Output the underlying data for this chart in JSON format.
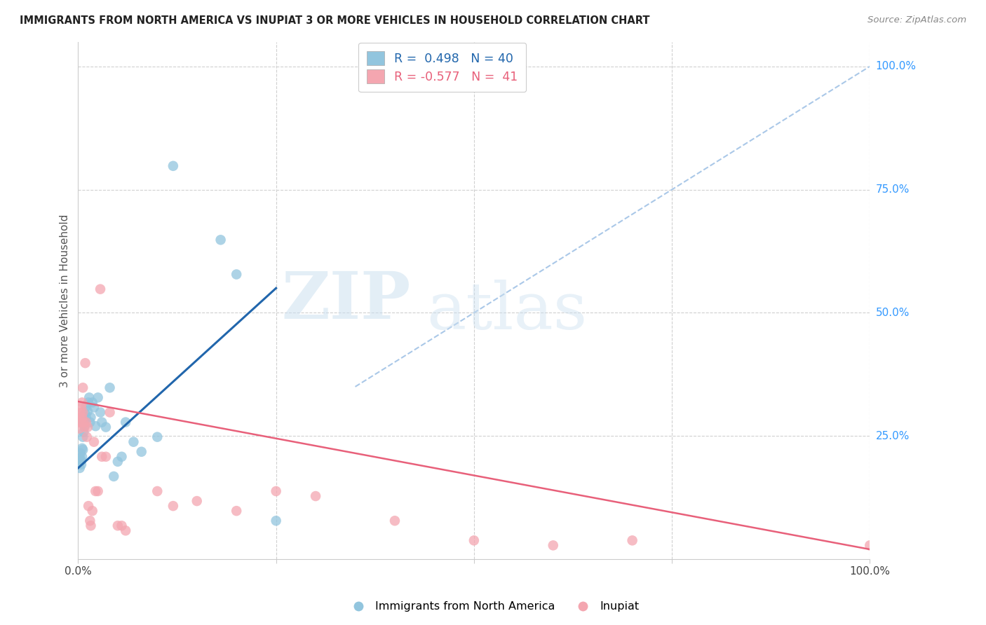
{
  "title": "IMMIGRANTS FROM NORTH AMERICA VS INUPIAT 3 OR MORE VEHICLES IN HOUSEHOLD CORRELATION CHART",
  "source": "Source: ZipAtlas.com",
  "ylabel": "3 or more Vehicles in Household",
  "ylabel_right_labels": [
    "100.0%",
    "75.0%",
    "50.0%",
    "25.0%"
  ],
  "ylabel_right_positions": [
    1.0,
    0.75,
    0.5,
    0.25
  ],
  "legend_blue_label": "R =  0.498   N = 40",
  "legend_pink_label": "R = -0.577   N =  41",
  "legend_bottom_blue": "Immigrants from North America",
  "legend_bottom_pink": "Inupiat",
  "blue_color": "#92c5de",
  "pink_color": "#f4a6b0",
  "line_blue_color": "#2166ac",
  "line_pink_color": "#e8607a",
  "dashed_line_color": "#aac8e8",
  "watermark_zip": "ZIP",
  "watermark_atlas": "atlas",
  "blue_dots": [
    [
      0.001,
      0.195
    ],
    [
      0.002,
      0.205
    ],
    [
      0.002,
      0.185
    ],
    [
      0.003,
      0.215
    ],
    [
      0.004,
      0.2
    ],
    [
      0.004,
      0.192
    ],
    [
      0.005,
      0.225
    ],
    [
      0.005,
      0.208
    ],
    [
      0.006,
      0.248
    ],
    [
      0.006,
      0.222
    ],
    [
      0.007,
      0.258
    ],
    [
      0.007,
      0.278
    ],
    [
      0.008,
      0.27
    ],
    [
      0.009,
      0.295
    ],
    [
      0.01,
      0.288
    ],
    [
      0.01,
      0.31
    ],
    [
      0.012,
      0.3
    ],
    [
      0.013,
      0.318
    ],
    [
      0.014,
      0.328
    ],
    [
      0.015,
      0.278
    ],
    [
      0.016,
      0.288
    ],
    [
      0.018,
      0.318
    ],
    [
      0.02,
      0.308
    ],
    [
      0.022,
      0.27
    ],
    [
      0.025,
      0.328
    ],
    [
      0.028,
      0.298
    ],
    [
      0.03,
      0.278
    ],
    [
      0.035,
      0.268
    ],
    [
      0.04,
      0.348
    ],
    [
      0.045,
      0.168
    ],
    [
      0.05,
      0.198
    ],
    [
      0.055,
      0.208
    ],
    [
      0.06,
      0.278
    ],
    [
      0.07,
      0.238
    ],
    [
      0.08,
      0.218
    ],
    [
      0.1,
      0.248
    ],
    [
      0.12,
      0.798
    ],
    [
      0.18,
      0.648
    ],
    [
      0.2,
      0.578
    ],
    [
      0.25,
      0.078
    ]
  ],
  "pink_dots": [
    [
      0.001,
      0.278
    ],
    [
      0.002,
      0.288
    ],
    [
      0.002,
      0.265
    ],
    [
      0.003,
      0.298
    ],
    [
      0.004,
      0.308
    ],
    [
      0.004,
      0.278
    ],
    [
      0.005,
      0.318
    ],
    [
      0.005,
      0.288
    ],
    [
      0.006,
      0.348
    ],
    [
      0.006,
      0.298
    ],
    [
      0.007,
      0.278
    ],
    [
      0.008,
      0.268
    ],
    [
      0.009,
      0.398
    ],
    [
      0.01,
      0.278
    ],
    [
      0.011,
      0.248
    ],
    [
      0.012,
      0.268
    ],
    [
      0.013,
      0.108
    ],
    [
      0.015,
      0.078
    ],
    [
      0.016,
      0.068
    ],
    [
      0.018,
      0.098
    ],
    [
      0.02,
      0.238
    ],
    [
      0.022,
      0.138
    ],
    [
      0.025,
      0.138
    ],
    [
      0.028,
      0.548
    ],
    [
      0.03,
      0.208
    ],
    [
      0.035,
      0.208
    ],
    [
      0.04,
      0.298
    ],
    [
      0.05,
      0.068
    ],
    [
      0.055,
      0.068
    ],
    [
      0.06,
      0.058
    ],
    [
      0.1,
      0.138
    ],
    [
      0.12,
      0.108
    ],
    [
      0.15,
      0.118
    ],
    [
      0.2,
      0.098
    ],
    [
      0.25,
      0.138
    ],
    [
      0.3,
      0.128
    ],
    [
      0.4,
      0.078
    ],
    [
      0.5,
      0.038
    ],
    [
      0.7,
      0.038
    ],
    [
      1.0,
      0.028
    ],
    [
      0.6,
      0.028
    ]
  ],
  "xlim": [
    0.0,
    1.0
  ],
  "ylim": [
    0.0,
    1.05
  ],
  "blue_line_x": [
    0.0,
    0.25
  ],
  "blue_line_y": [
    0.185,
    0.55
  ],
  "pink_line_x": [
    0.0,
    1.0
  ],
  "pink_line_y": [
    0.32,
    0.02
  ],
  "dashed_line_x": [
    0.35,
    1.0
  ],
  "dashed_line_y": [
    0.35,
    1.0
  ]
}
